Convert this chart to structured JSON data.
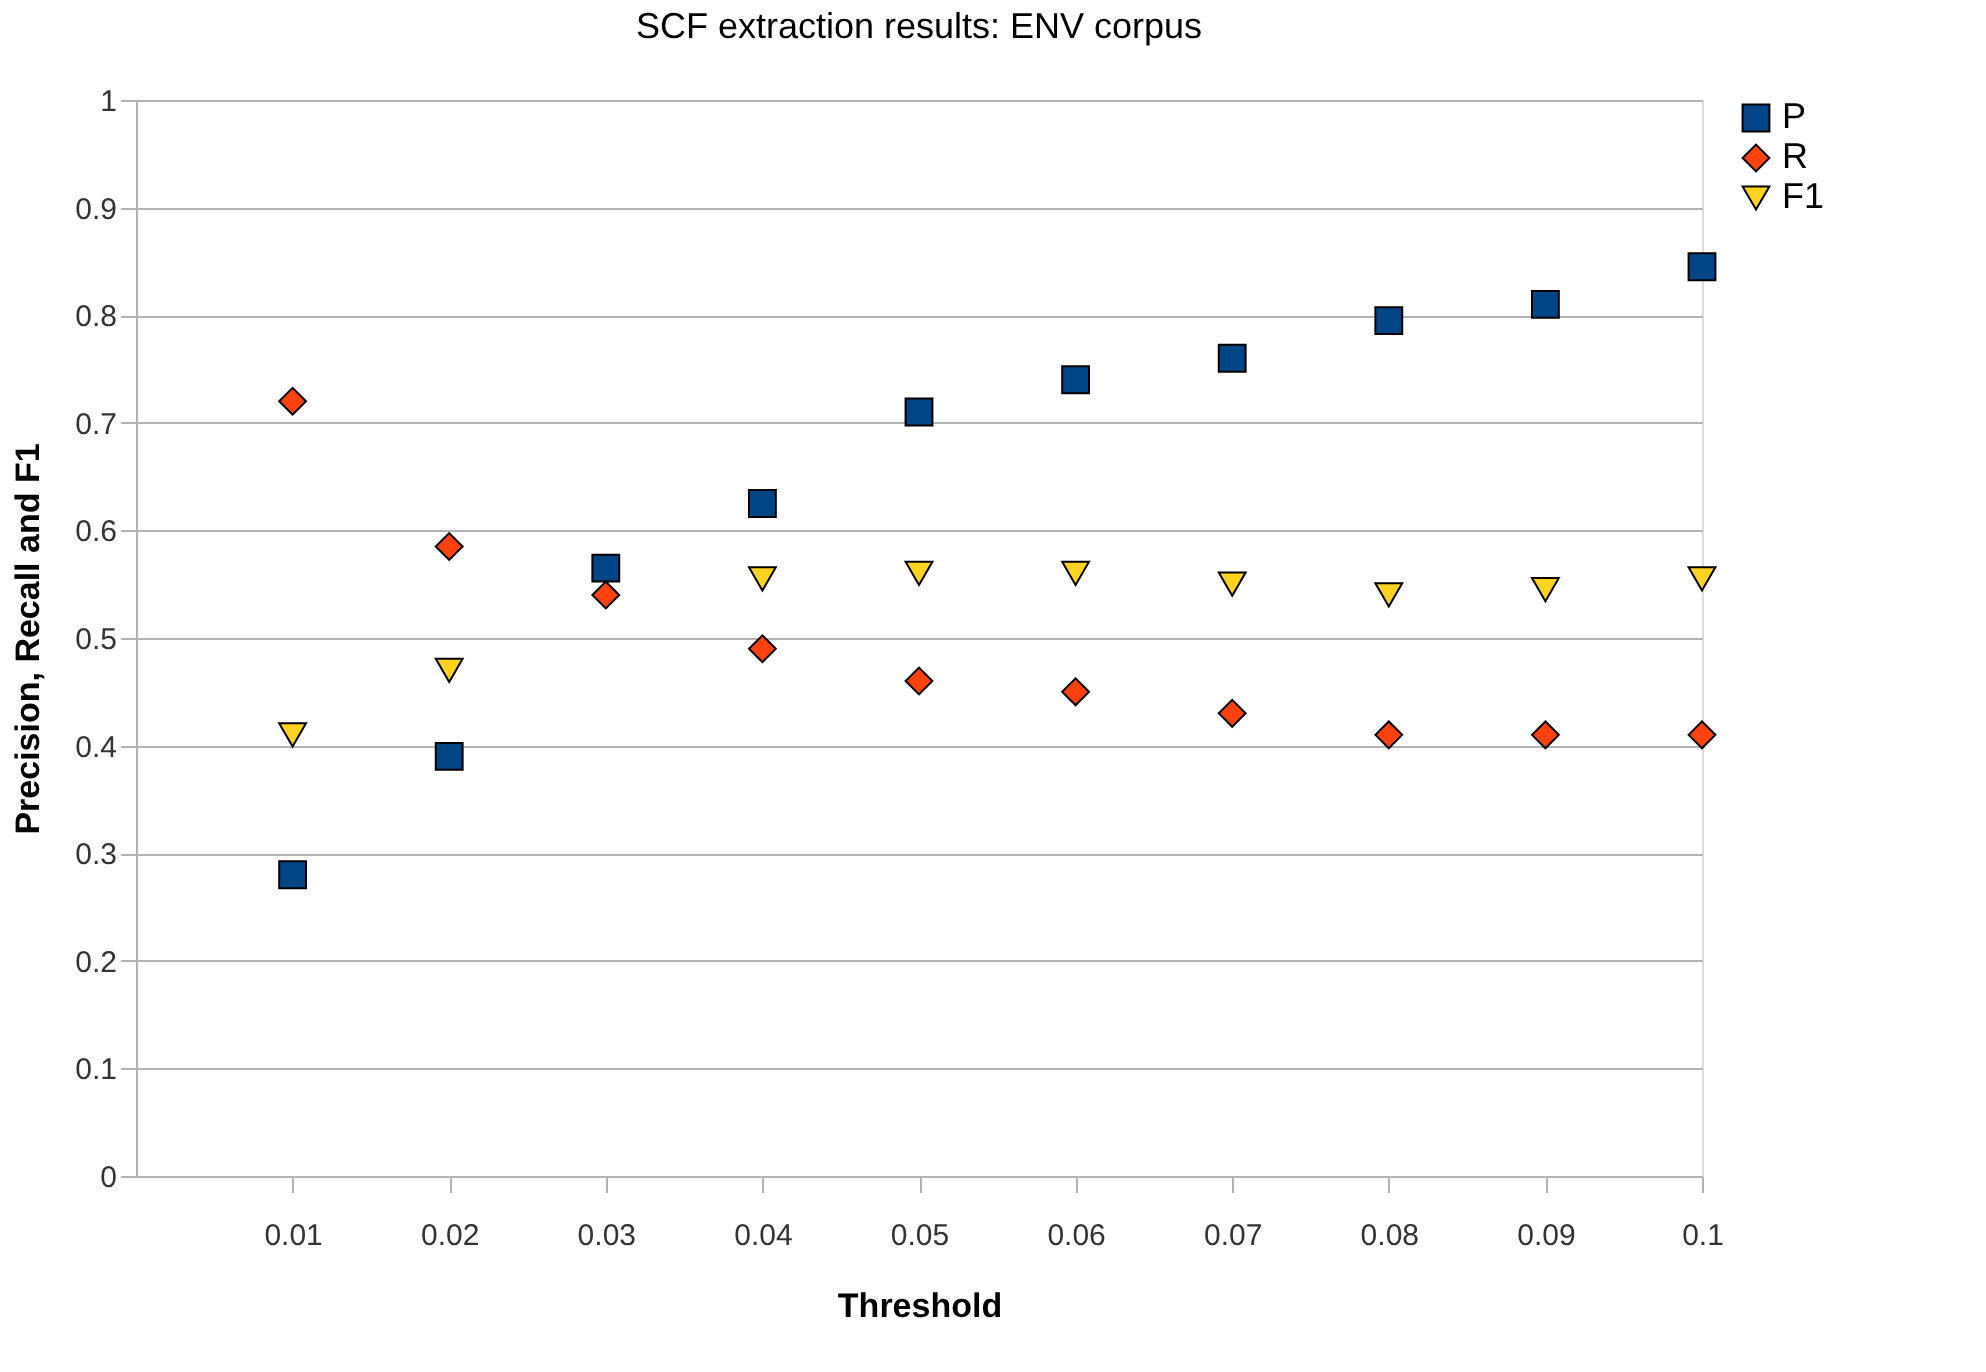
{
  "chart_data": {
    "type": "scatter",
    "title": "SCF extraction results: ENV corpus",
    "xlabel": "Threshold",
    "ylabel": "Precision, Recall and F1",
    "x": [
      0.01,
      0.02,
      0.03,
      0.04,
      0.05,
      0.06,
      0.07,
      0.08,
      0.09,
      0.1
    ],
    "series": [
      {
        "name": "P",
        "color": "#004586",
        "marker": "square",
        "values": [
          0.28,
          0.39,
          0.565,
          0.625,
          0.71,
          0.74,
          0.76,
          0.795,
          0.81,
          0.845
        ]
      },
      {
        "name": "R",
        "color": "#ff420e",
        "marker": "diamond",
        "values": [
          0.72,
          0.585,
          0.54,
          0.49,
          0.46,
          0.45,
          0.43,
          0.41,
          0.41,
          0.41
        ]
      },
      {
        "name": "F1",
        "color": "#ffd320",
        "marker": "triangle-down",
        "values": [
          0.41,
          0.47,
          null,
          0.555,
          0.56,
          0.56,
          0.55,
          0.54,
          0.545,
          0.555
        ]
      }
    ],
    "xlim": [
      0,
      0.1
    ],
    "xticks": [
      0.01,
      0.02,
      0.03,
      0.04,
      0.05,
      0.06,
      0.07,
      0.08,
      0.09,
      0.1
    ],
    "ylim": [
      0,
      1
    ],
    "yticks": [
      0,
      0.1,
      0.2,
      0.3,
      0.4,
      0.5,
      0.6,
      0.7,
      0.8,
      0.9,
      1
    ],
    "grid": "y",
    "legend": "right"
  }
}
